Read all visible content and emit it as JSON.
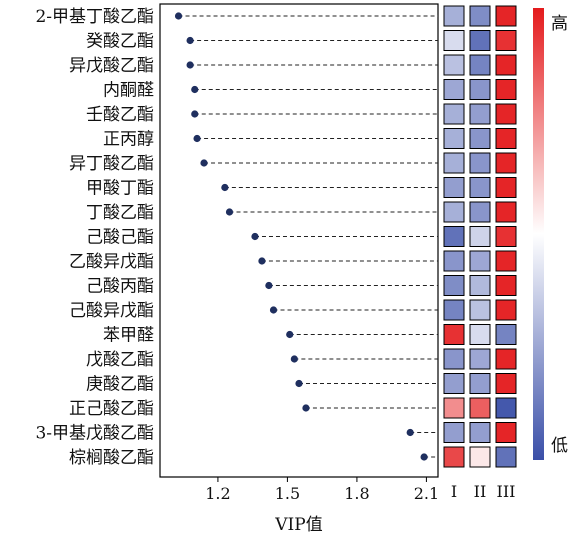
{
  "chart_data": {
    "type": "scatter",
    "subtype": "lollipop-dot-plot-with-heatmap",
    "xlabel": "VIP值",
    "xticks": [
      1.2,
      1.5,
      1.8,
      2.1
    ],
    "xlim": [
      0.95,
      2.15
    ],
    "grid": "dashed horizontal guide lines per compound",
    "categories": [
      "2-甲基丁酸乙酯",
      "癸酸乙酯",
      "异戊酸乙酯",
      "内酮醛",
      "壬酸乙酯",
      "正丙醇",
      "异丁酸乙酯",
      "甲酸丁酯",
      "丁酸乙酯",
      "己酸己酯",
      "乙酸异戊酯",
      "己酸丙酯",
      "己酸异戊酯",
      "苯甲醛",
      "戊酸乙酯",
      "庚酸乙酯",
      "正己酸乙酯",
      "3-甲基戊酸乙酯",
      "棕榈酸乙酯"
    ],
    "vip": [
      1.03,
      1.08,
      1.08,
      1.1,
      1.1,
      1.11,
      1.14,
      1.23,
      1.25,
      1.36,
      1.39,
      1.42,
      1.44,
      1.51,
      1.53,
      1.55,
      1.58,
      2.03,
      2.09
    ],
    "heatmap": {
      "columns": [
        "I",
        "II",
        "III"
      ],
      "values": [
        [
          -0.45,
          -0.65,
          0.95
        ],
        [
          -0.2,
          -0.8,
          0.9
        ],
        [
          -0.35,
          -0.7,
          0.95
        ],
        [
          -0.5,
          -0.6,
          0.95
        ],
        [
          -0.45,
          -0.55,
          0.95
        ],
        [
          -0.45,
          -0.6,
          0.95
        ],
        [
          -0.45,
          -0.6,
          0.95
        ],
        [
          -0.55,
          -0.6,
          0.95
        ],
        [
          -0.45,
          -0.6,
          0.95
        ],
        [
          -0.8,
          -0.25,
          0.9
        ],
        [
          -0.6,
          -0.5,
          0.95
        ],
        [
          -0.65,
          -0.4,
          0.95
        ],
        [
          -0.7,
          -0.35,
          0.95
        ],
        [
          0.9,
          -0.2,
          -0.7
        ],
        [
          -0.6,
          -0.5,
          0.95
        ],
        [
          -0.55,
          -0.55,
          0.95
        ],
        [
          0.5,
          0.7,
          -0.95
        ],
        [
          -0.55,
          -0.55,
          0.95
        ],
        [
          0.8,
          0.1,
          -0.8
        ]
      ]
    },
    "colorbar": {
      "high_label": "高",
      "low_label": "低",
      "high_color": "#e41a1c",
      "mid_color": "#ffffff",
      "low_color": "#3a4fa8"
    },
    "dot_color": "#1f2f5f"
  }
}
